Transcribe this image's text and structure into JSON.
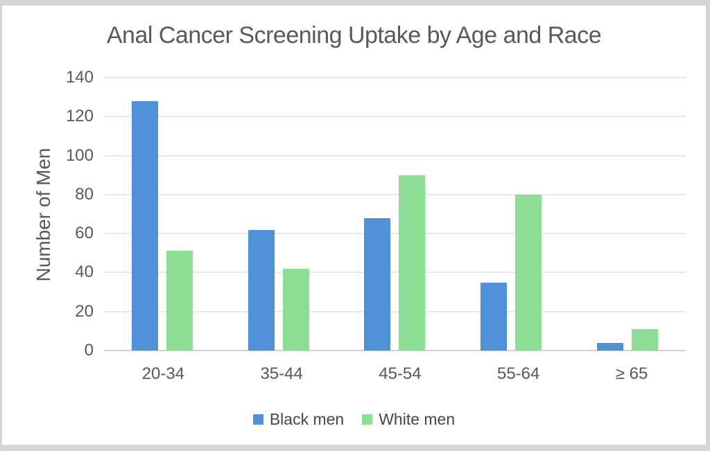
{
  "frame": {
    "background": "#fefefe",
    "border_color": "#d6d6d6"
  },
  "chart_data": {
    "type": "bar",
    "title": "Anal Cancer Screening Uptake by Age and Race",
    "xlabel": "",
    "ylabel": "Number of Men",
    "categories": [
      "20-34",
      "35-44",
      "45-54",
      "55-64",
      "≥ 65"
    ],
    "series": [
      {
        "name": "Black men",
        "color": "#4e91d8",
        "values": [
          128,
          62,
          68,
          35,
          4
        ]
      },
      {
        "name": "White men",
        "color": "#8cde92",
        "values": [
          51,
          42,
          90,
          80,
          11
        ]
      }
    ],
    "ylim": [
      0,
      140
    ],
    "ytick_step": 20,
    "yticks": [
      140,
      120,
      100,
      80,
      60,
      40,
      20,
      0
    ],
    "grid": "horizontal",
    "legend_position": "bottom"
  },
  "text_colors": {
    "title": "#595959",
    "axis_labels": "#595959",
    "legend": "#474747"
  },
  "gridline_color": "#e8e8e8",
  "axis_line_color": "#d2d2d2"
}
